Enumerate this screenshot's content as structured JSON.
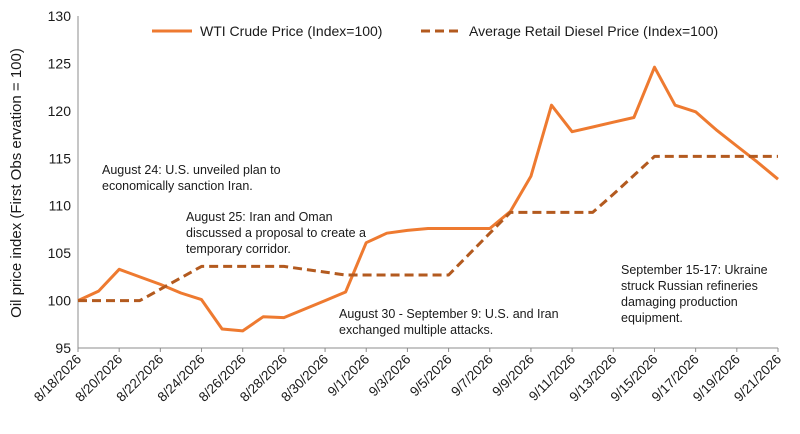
{
  "chart_data": {
    "type": "line",
    "ylabel": "Oil price index (First Obs ervation = 100)",
    "xlabel": "",
    "ylim": [
      95,
      130
    ],
    "yticks": [
      95,
      100,
      105,
      110,
      115,
      120,
      125,
      130
    ],
    "grid": false,
    "legend_position": "top",
    "x": [
      "8/18/2026",
      "8/19/2026",
      "8/20/2026",
      "8/21/2026",
      "8/22/2026",
      "8/23/2026",
      "8/24/2026",
      "8/25/2026",
      "8/26/2026",
      "8/27/2026",
      "8/28/2026",
      "8/29/2026",
      "8/30/2026",
      "8/31/2026",
      "9/1/2026",
      "9/2/2026",
      "9/3/2026",
      "9/4/2026",
      "9/5/2026",
      "9/6/2026",
      "9/7/2026",
      "9/8/2026",
      "9/9/2026",
      "9/10/2026",
      "9/11/2026",
      "9/12/2026",
      "9/13/2026",
      "9/14/2026",
      "9/15/2026",
      "9/16/2026",
      "9/17/2026",
      "9/18/2026",
      "9/19/2026",
      "9/20/2026",
      "9/21/2026"
    ],
    "xtick_labels": [
      "8/18/2026",
      "8/20/2026",
      "8/22/2026",
      "8/24/2026",
      "8/26/2026",
      "8/28/2026",
      "8/30/2026",
      "9/1/2026",
      "9/3/2026",
      "9/5/2026",
      "9/7/2026",
      "9/9/2026",
      "9/11/2026",
      "9/13/2026",
      "9/15/2026",
      "9/17/2026",
      "9/19/2026",
      "9/21/2026"
    ],
    "series": [
      {
        "name": "WTI Crude Price (Index=100)",
        "color": "#ee7a30",
        "dash": false,
        "values": [
          100.0,
          101.0,
          103.3,
          102.5,
          101.7,
          100.8,
          100.1,
          97.0,
          96.8,
          98.3,
          98.2,
          99.1,
          100.0,
          100.9,
          106.1,
          107.1,
          107.4,
          107.6,
          107.6,
          107.6,
          107.6,
          109.4,
          113.1,
          120.6,
          117.8,
          118.3,
          118.8,
          119.3,
          124.6,
          120.6,
          119.9,
          118.0,
          116.3,
          114.6,
          112.8
        ]
      },
      {
        "name": "Average Retail Diesel Price (Index=100)",
        "color": "#b35a1f",
        "dash": true,
        "values": [
          100.0,
          100.0,
          100.0,
          100.0,
          101.2,
          102.4,
          103.6,
          103.6,
          103.6,
          103.6,
          103.6,
          103.3,
          103.0,
          102.7,
          102.7,
          102.7,
          102.7,
          102.7,
          102.7,
          104.9,
          107.1,
          109.3,
          109.3,
          109.3,
          109.3,
          109.3,
          111.2,
          113.2,
          115.2,
          115.2,
          115.2,
          115.2,
          115.2,
          115.2,
          115.2
        ]
      }
    ],
    "annotations": [
      {
        "lines": [
          "August 24: U.S. unveiled plan  to",
          "economically sanction Iran."
        ]
      },
      {
        "lines": [
          "August 25: Iran and Oman",
          "discussed a proposal to create a",
          "temporary corridor."
        ]
      },
      {
        "lines": [
          "August 30 - September 9: U.S. and Iran",
          "exchanged multiple attacks."
        ]
      },
      {
        "lines": [
          "September 15-17: Ukraine",
          "struck Russian refineries",
          "damaging production",
          "equipment."
        ]
      }
    ]
  }
}
